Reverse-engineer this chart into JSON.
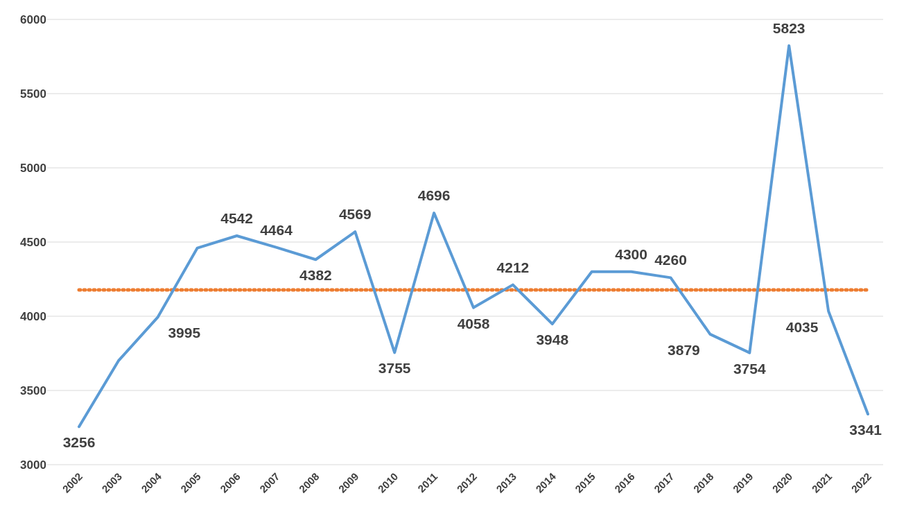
{
  "chart_data": {
    "type": "line",
    "categories": [
      "2002",
      "2003",
      "2004",
      "2005",
      "2006",
      "2007",
      "2008",
      "2009",
      "2010",
      "2011",
      "2012",
      "2013",
      "2014",
      "2015",
      "2016",
      "2017",
      "2018",
      "2019",
      "2020",
      "2021",
      "2022"
    ],
    "series": [
      {
        "color": "#5b9bd5",
        "values": [
          3256,
          3700,
          3995,
          4460,
          4542,
          4464,
          4382,
          4569,
          3755,
          4696,
          4058,
          4212,
          3948,
          4300,
          4300,
          4260,
          3879,
          3754,
          5823,
          4035,
          3341
        ],
        "value_labels": [
          "3256",
          null,
          "3995",
          null,
          "4542",
          "4464",
          "4382",
          "4569",
          "3755",
          "4696",
          "4058",
          "4212",
          "3948",
          null,
          "4300",
          "4260",
          "3879",
          "3754",
          "5823",
          "4035",
          "3341"
        ]
      }
    ],
    "ylim": [
      3000,
      6000
    ],
    "yticks": [
      3000,
      3500,
      4000,
      4500,
      5000,
      5500,
      6000
    ],
    "grid": "y",
    "marker": "none",
    "line_style": "solid",
    "ref_lines": [
      {
        "axis": "y",
        "value": 4178,
        "color": "#ed7d31",
        "line_style": "dotted"
      }
    ]
  }
}
